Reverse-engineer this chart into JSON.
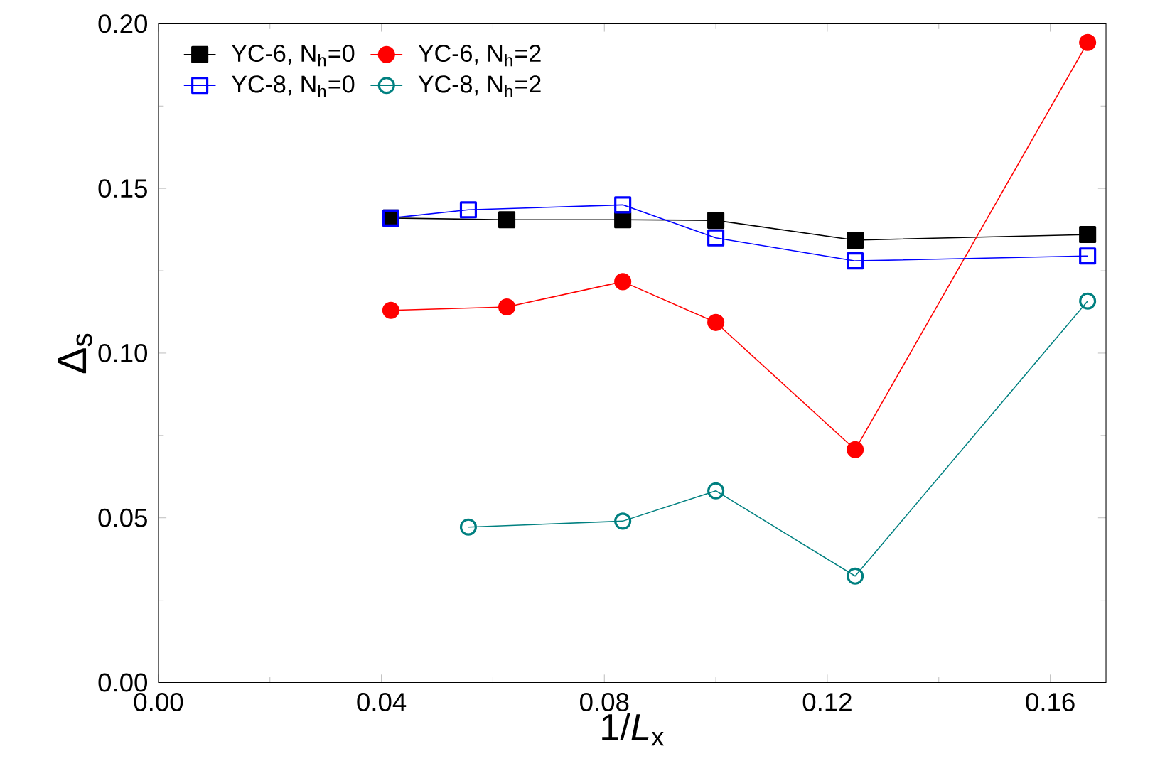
{
  "chart_data": {
    "type": "line",
    "xlabel": "1/*L*$_{x}$",
    "ylabel": "Δ$_{s}$",
    "xlim": [
      0,
      0.17
    ],
    "ylim": [
      0,
      0.2
    ],
    "xticks": [
      {
        "value": 0,
        "label": "0.00"
      },
      {
        "value": 0.04,
        "label": "0.04"
      },
      {
        "value": 0.08,
        "label": "0.08"
      },
      {
        "value": 0.12,
        "label": "0.12"
      },
      {
        "value": 0.16,
        "label": "0.16"
      }
    ],
    "yticks": [
      {
        "value": 0,
        "label": "0.00"
      },
      {
        "value": 0.05,
        "label": "0.05"
      },
      {
        "value": 0.1,
        "label": "0.10"
      },
      {
        "value": 0.15,
        "label": "0.15"
      },
      {
        "value": 0.2,
        "label": "0.20"
      }
    ],
    "grid": false,
    "legend": "top left",
    "line_style": "solid",
    "series": [
      {
        "name": "YC-6, N$_{h}$=0",
        "color": "#000000",
        "marker": "square",
        "x": [
          0.0417,
          0.0625,
          0.0833,
          0.1,
          0.125,
          0.1667
        ],
        "values": [
          0.141,
          0.1405,
          0.1405,
          0.1403,
          0.1343,
          0.136
        ]
      },
      {
        "name": "YC-6, N$_{h}$=2",
        "color": "#ff0000",
        "marker": "circle",
        "x": [
          0.0417,
          0.0625,
          0.0833,
          0.1,
          0.125,
          0.1667
        ],
        "values": [
          0.113,
          0.114,
          0.1217,
          0.1093,
          0.0707,
          0.1943
        ]
      },
      {
        "name": "YC-8, N$_{h}$=0",
        "color": "#0000ff",
        "marker": "square",
        "x": [
          0.0417,
          0.0556,
          0.0833,
          0.1,
          0.125,
          0.1667
        ],
        "values": [
          0.141,
          0.1435,
          0.145,
          0.135,
          0.128,
          0.1295
        ]
      },
      {
        "name": "YC-8, N$_{h}$=2",
        "color": "#008080",
        "marker": "circle",
        "x": [
          0.0556,
          0.0833,
          0.1,
          0.125,
          0.1667
        ],
        "values": [
          0.0472,
          0.049,
          0.0582,
          0.0323,
          0.1158
        ]
      }
    ]
  }
}
